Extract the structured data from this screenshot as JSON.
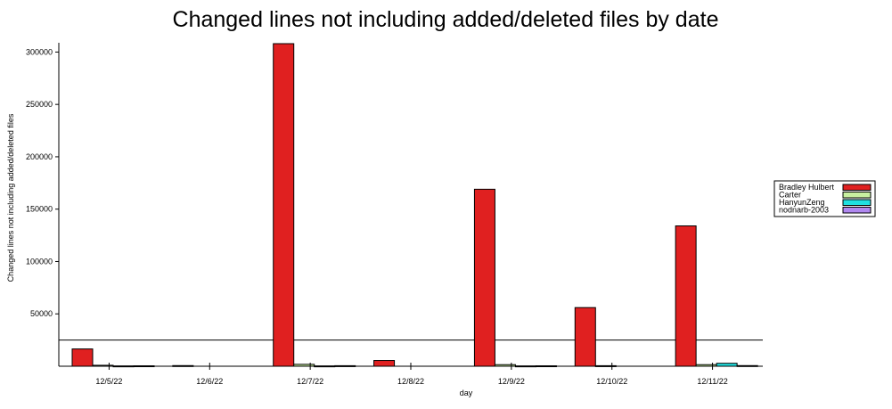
{
  "chart_data": {
    "type": "bar",
    "title": "Changed lines not including added/deleted files by date",
    "xlabel": "day",
    "ylabel": "Changed lines not including added/deleted files",
    "categories": [
      "12/5/22",
      "12/6/22",
      "12/7/22",
      "12/8/22",
      "12/9/22",
      "12/10/22",
      "12/11/22"
    ],
    "ylim": [
      0,
      308000
    ],
    "yticks": [
      50000,
      100000,
      150000,
      200000,
      250000,
      300000
    ],
    "reference_line": 25000,
    "legend_position": "right",
    "series": [
      {
        "name": "Bradley Hulbert",
        "color": "#e02020",
        "values": [
          16500,
          600,
          308000,
          5500,
          169000,
          56000,
          134000
        ]
      },
      {
        "name": "Carter",
        "color": "#c8f0a0",
        "values": [
          900,
          0,
          1800,
          0,
          1500,
          500,
          1500
        ]
      },
      {
        "name": "HanyunZeng",
        "color": "#20e0e0",
        "values": [
          300,
          0,
          300,
          0,
          300,
          0,
          2800
        ]
      },
      {
        "name": "nodnarb-2003",
        "color": "#b088f0",
        "values": [
          400,
          0,
          500,
          0,
          400,
          0,
          600
        ]
      }
    ]
  }
}
